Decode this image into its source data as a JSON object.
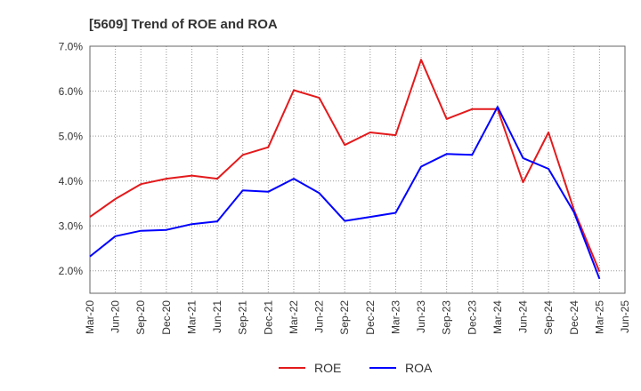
{
  "chart_data": {
    "type": "line",
    "title": "[5609]  Trend of ROE and ROA",
    "xlabel": "",
    "ylabel": "",
    "ylim": [
      1.5,
      7.0
    ],
    "y_ticks": [
      2.0,
      3.0,
      4.0,
      5.0,
      6.0,
      7.0
    ],
    "y_tick_labels": [
      "2.0%",
      "3.0%",
      "4.0%",
      "5.0%",
      "6.0%",
      "7.0%"
    ],
    "categories": [
      "Mar-20",
      "Jun-20",
      "Sep-20",
      "Dec-20",
      "Mar-21",
      "Jun-21",
      "Sep-21",
      "Dec-21",
      "Mar-22",
      "Jun-22",
      "Sep-22",
      "Dec-22",
      "Mar-23",
      "Jun-23",
      "Sep-23",
      "Dec-23",
      "Mar-24",
      "Jun-24",
      "Sep-24",
      "Dec-24",
      "Mar-25",
      "Jun-25"
    ],
    "grid": true,
    "legend_position": "bottom",
    "series": [
      {
        "name": "ROE",
        "color": "#e31a1c",
        "values": [
          3.2,
          3.6,
          3.93,
          4.05,
          4.12,
          4.05,
          4.58,
          4.75,
          6.02,
          5.85,
          4.8,
          5.08,
          5.02,
          6.7,
          5.38,
          5.6,
          5.6,
          3.97,
          5.08,
          3.35,
          1.98,
          null
        ]
      },
      {
        "name": "ROA",
        "color": "#0000ff",
        "values": [
          2.32,
          2.77,
          2.89,
          2.91,
          3.04,
          3.1,
          3.79,
          3.76,
          4.05,
          3.73,
          3.11,
          3.2,
          3.29,
          4.32,
          4.6,
          4.58,
          5.65,
          4.51,
          4.27,
          3.3,
          1.82,
          null
        ]
      }
    ]
  }
}
